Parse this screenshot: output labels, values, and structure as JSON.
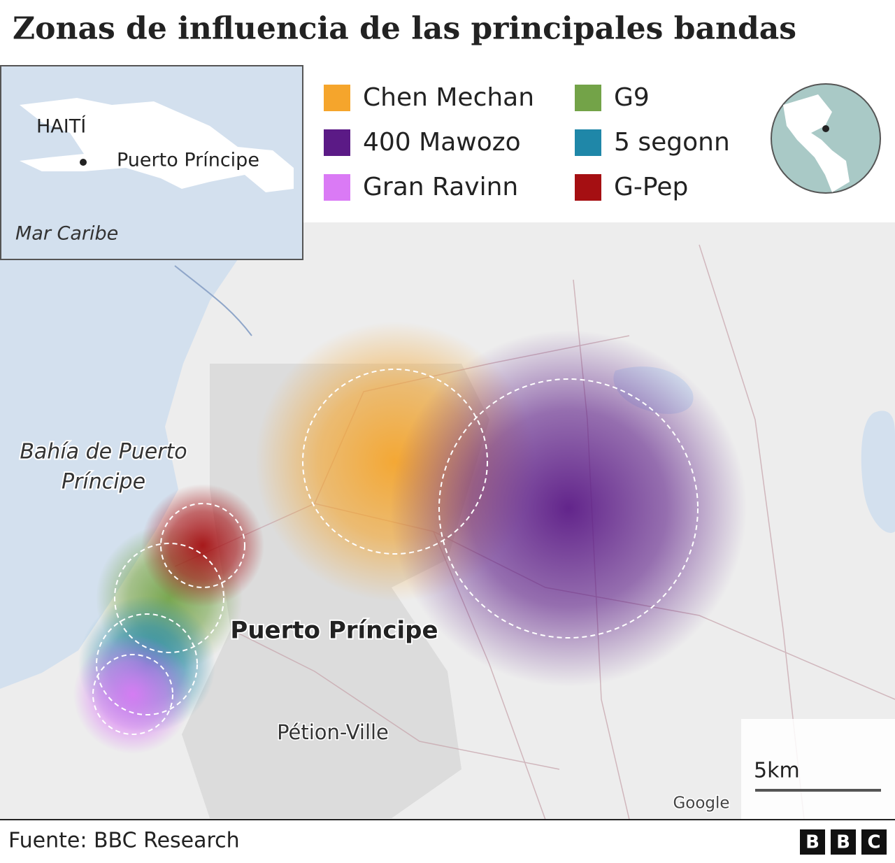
{
  "title": "Zonas de influencia de las principales bandas",
  "inset": {
    "country": "HAITÍ",
    "city": "Puerto Príncipe",
    "sea": "Mar Caribe"
  },
  "legend": [
    {
      "name": "Chen Mechan",
      "color": "#f5a52c"
    },
    {
      "name": "400 Mawozo",
      "color": "#5b1a86"
    },
    {
      "name": "Gran Ravinn",
      "color": "#da7af5"
    },
    {
      "name": "G9",
      "color": "#73a348"
    },
    {
      "name": "5 segonn",
      "color": "#1f87a8"
    },
    {
      "name": "G-Pep",
      "color": "#a50f12"
    }
  ],
  "labels": {
    "bay": [
      "Bahía de Puerto",
      "Príncipe"
    ],
    "city": "Puerto Príncipe",
    "suburb": "Pétion-Ville"
  },
  "scale": "5km",
  "attribution": "Google",
  "source": "Fuente: BBC Research",
  "logo": [
    "B",
    "B",
    "C"
  ]
}
